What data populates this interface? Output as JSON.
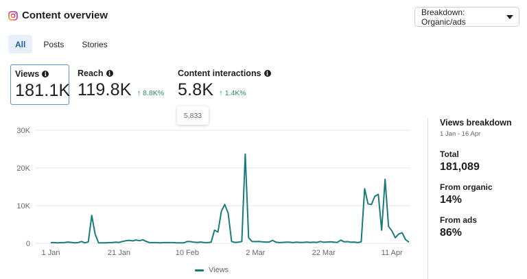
{
  "header": {
    "title": "Content overview",
    "icon": "instagram-icon"
  },
  "breakdown": {
    "label": "Breakdown: Organic/ads"
  },
  "tabs": [
    {
      "label": "All",
      "active": true
    },
    {
      "label": "Posts",
      "active": false
    },
    {
      "label": "Stories",
      "active": false
    }
  ],
  "metrics": {
    "views": {
      "label": "Views",
      "value": "181.1K"
    },
    "reach": {
      "label": "Reach",
      "value": "119.8K",
      "delta": "8.8K%"
    },
    "interactions": {
      "label": "Content interactions",
      "value": "5.8K",
      "delta": "1.4K%"
    }
  },
  "tooltip": {
    "value": "5,833"
  },
  "colors": {
    "line": "#197a7a",
    "accent": "#1b5dac",
    "positive": "#2a8a66",
    "grid": "#e4e6eb"
  },
  "chart_data": {
    "type": "line",
    "y_ticks": [
      "0",
      "10K",
      "20K",
      "30K"
    ],
    "x_ticks": [
      "1 Jan",
      "21 Jan",
      "10 Feb",
      "2 Mar",
      "22 Mar",
      "11 Apr"
    ],
    "ylim": [
      0,
      30000
    ],
    "x_range_days": [
      0,
      105
    ],
    "x_tick_days": [
      0,
      20,
      40,
      60,
      80,
      100
    ],
    "series": [
      {
        "name": "Views",
        "x": [
          0,
          1,
          2,
          3,
          4,
          5,
          6,
          7,
          8,
          9,
          10,
          11,
          12,
          13,
          14,
          15,
          16,
          17,
          18,
          19,
          20,
          21,
          22,
          23,
          24,
          25,
          26,
          27,
          28,
          29,
          30,
          31,
          32,
          33,
          34,
          35,
          36,
          37,
          38,
          39,
          40,
          41,
          42,
          43,
          44,
          45,
          46,
          47,
          48,
          49,
          50,
          51,
          52,
          53,
          54,
          55,
          56,
          57,
          58,
          59,
          60,
          61,
          62,
          63,
          64,
          65,
          66,
          67,
          68,
          69,
          70,
          71,
          72,
          73,
          74,
          75,
          76,
          77,
          78,
          79,
          80,
          81,
          82,
          83,
          84,
          85,
          86,
          87,
          88,
          89,
          90,
          91,
          92,
          93,
          94,
          95,
          96,
          97,
          98,
          99,
          100,
          101,
          102,
          103,
          104,
          105
        ],
        "values": [
          200,
          200,
          150,
          200,
          200,
          350,
          250,
          150,
          200,
          500,
          150,
          400,
          7400,
          2500,
          150,
          150,
          150,
          200,
          200,
          300,
          250,
          500,
          700,
          800,
          650,
          900,
          700,
          950,
          500,
          200,
          200,
          200,
          150,
          200,
          200,
          200,
          200,
          150,
          150,
          150,
          500,
          450,
          300,
          250,
          350,
          200,
          200,
          300,
          3500,
          3000,
          8500,
          10300,
          8000,
          500,
          250,
          300,
          500,
          23700,
          1500,
          500,
          450,
          500,
          400,
          350,
          350,
          800,
          300,
          200,
          250,
          300,
          300,
          200,
          300,
          250,
          250,
          350,
          250,
          300,
          250,
          500,
          300,
          350,
          400,
          300,
          250,
          850,
          400,
          450,
          300,
          350,
          200,
          400,
          14500,
          10500,
          10300,
          12500,
          13000,
          3500,
          17000,
          4500,
          3300,
          1500,
          2500,
          2800,
          1000,
          300
        ]
      }
    ]
  },
  "side": {
    "title": "Views breakdown",
    "range": "1 Jan - 16 Apr",
    "total_label": "Total",
    "total_value": "181,089",
    "organic_label": "From organic",
    "organic_value": "14%",
    "ads_label": "From ads",
    "ads_value": "86%"
  }
}
